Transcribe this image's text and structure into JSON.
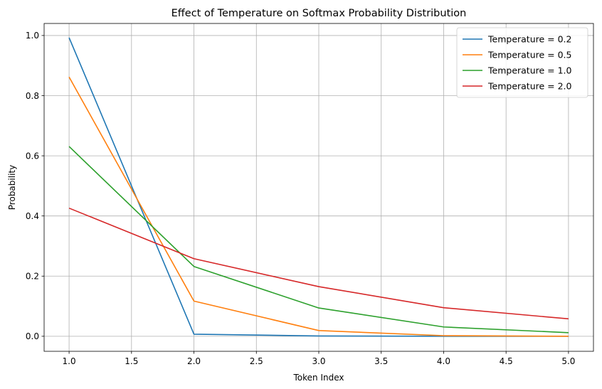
{
  "chart_data": {
    "type": "line",
    "title": "Effect of Temperature on Softmax Probability Distribution",
    "xlabel": "Token Index",
    "ylabel": "Probability",
    "x": [
      1,
      2,
      3,
      4,
      5
    ],
    "xlim": [
      0.8,
      5.2
    ],
    "ylim": [
      -0.05,
      1.04
    ],
    "xticks": [
      1.0,
      1.5,
      2.0,
      2.5,
      3.0,
      3.5,
      4.0,
      4.5,
      5.0
    ],
    "yticks": [
      0.0,
      0.2,
      0.4,
      0.6,
      0.8,
      1.0
    ],
    "xtick_labels": [
      "1.0",
      "1.5",
      "2.0",
      "2.5",
      "3.0",
      "3.5",
      "4.0",
      "4.5",
      "5.0"
    ],
    "ytick_labels": [
      "0.0",
      "0.2",
      "0.4",
      "0.6",
      "0.8",
      "1.0"
    ],
    "grid": true,
    "legend_position": "top-right",
    "series": [
      {
        "name": "Temperature = 0.2",
        "color": "#1f77b4",
        "values": [
          0.993,
          0.007,
          0.001,
          0.0,
          0.0
        ]
      },
      {
        "name": "Temperature = 0.5",
        "color": "#ff7f0e",
        "values": [
          0.862,
          0.117,
          0.019,
          0.002,
          0.0
        ]
      },
      {
        "name": "Temperature = 1.0",
        "color": "#2ca02c",
        "values": [
          0.631,
          0.232,
          0.094,
          0.031,
          0.012
        ]
      },
      {
        "name": "Temperature = 2.0",
        "color": "#d62728",
        "values": [
          0.426,
          0.258,
          0.165,
          0.095,
          0.058
        ]
      }
    ]
  }
}
